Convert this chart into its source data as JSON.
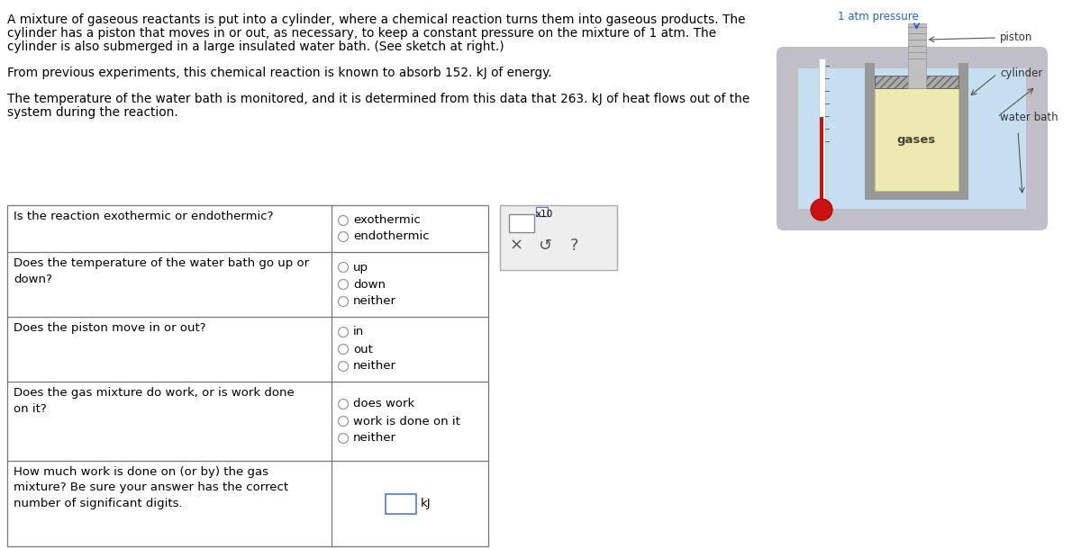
{
  "bg_color": "#ffffff",
  "text_color": "#000000",
  "paragraph1_line1": "A mixture of gaseous reactants is put into a cylinder, where a chemical reaction turns them into gaseous products. The",
  "paragraph1_line2": "cylinder has a piston that moves in or out, as necessary, to keep a constant pressure on the mixture of 1 atm. The",
  "paragraph1_line3": "cylinder is also submerged in a large insulated water bath. (See sketch at right.)",
  "paragraph2": "From previous experiments, this chemical reaction is known to absorb 152. kJ of energy.",
  "paragraph3_line1": "The temperature of the water bath is monitored, and it is determined from this data that 263. kJ of heat flows out of the",
  "paragraph3_line2": "system during the reaction.",
  "table_rows": [
    {
      "question": "Is the reaction exothermic or endothermic?",
      "options": [
        "exothermic",
        "endothermic"
      ]
    },
    {
      "question": "Does the temperature of the water bath go up or\ndown?",
      "options": [
        "up",
        "down",
        "neither"
      ]
    },
    {
      "question": "Does the piston move in or out?",
      "options": [
        "in",
        "out",
        "neither"
      ]
    },
    {
      "question": "Does the gas mixture do work, or is work done\non it?",
      "options": [
        "does work",
        "work is done on it",
        "neither"
      ]
    },
    {
      "question": "How much work is done on (or by) the gas\nmixture? Be sure your answer has the correct\nnumber of significant digits.",
      "options": []
    }
  ],
  "diagram_label_atm": "1 atm pressure",
  "diagram_label_piston": "piston",
  "diagram_label_cylinder": "cylinder",
  "diagram_label_water": "water bath",
  "diagram_label_gases": "gases",
  "label_color_atm": "#2266bb",
  "label_color_parts": "#333333",
  "font_size_body": 9.8,
  "font_size_table": 9.5,
  "table_border_color": "#777777"
}
